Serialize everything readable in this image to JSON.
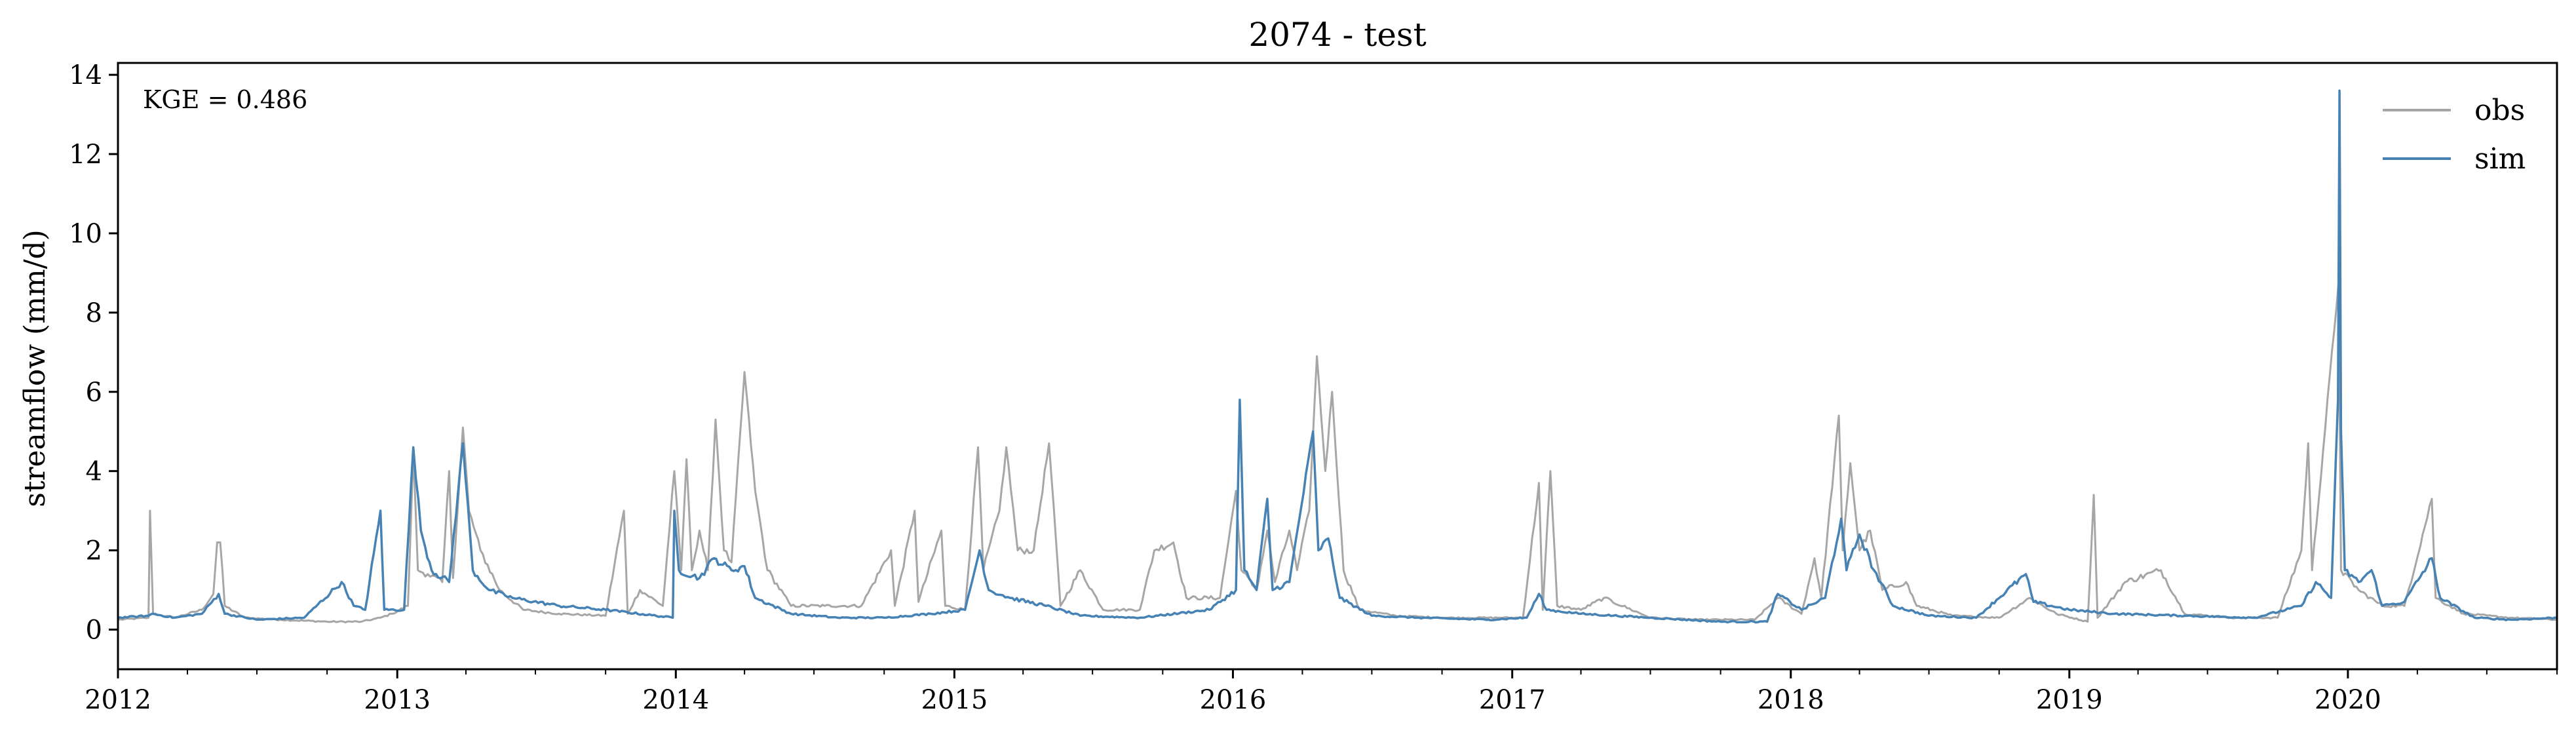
{
  "chart_data": {
    "type": "line",
    "title": "2074 - test",
    "xlabel": "",
    "ylabel": "streamflow (mm/d)",
    "x_range": [
      "2012-01-01",
      "2020-10-01"
    ],
    "ylim": [
      -1,
      14.3
    ],
    "x_ticks": [
      "2012",
      "2013",
      "2014",
      "2015",
      "2016",
      "2017",
      "2018",
      "2019",
      "2020"
    ],
    "y_ticks": [
      0,
      2,
      4,
      6,
      8,
      10,
      12,
      14
    ],
    "grid": false,
    "legend_position": "top-right",
    "annotation": "KGE = 0.486",
    "baseline_value": 0.3,
    "series": [
      {
        "name": "obs",
        "color": "#a6a6a6",
        "points": [
          [
            "2012-01-01",
            0.25
          ],
          [
            "2012-02-10",
            0.3
          ],
          [
            "2012-02-12",
            3.0
          ],
          [
            "2012-02-16",
            0.4
          ],
          [
            "2012-03-15",
            0.3
          ],
          [
            "2012-04-20",
            0.5
          ],
          [
            "2012-05-05",
            0.9
          ],
          [
            "2012-05-10",
            2.2
          ],
          [
            "2012-05-14",
            2.2
          ],
          [
            "2012-05-20",
            0.6
          ],
          [
            "2012-06-15",
            0.3
          ],
          [
            "2012-08-01",
            0.25
          ],
          [
            "2012-10-01",
            0.2
          ],
          [
            "2012-11-15",
            0.2
          ],
          [
            "2012-12-10",
            0.3
          ],
          [
            "2012-12-25",
            0.4
          ],
          [
            "2013-01-15",
            0.6
          ],
          [
            "2013-01-22",
            4.5
          ],
          [
            "2013-01-28",
            1.5
          ],
          [
            "2013-02-10",
            1.4
          ],
          [
            "2013-03-01",
            1.2
          ],
          [
            "2013-03-10",
            4.0
          ],
          [
            "2013-03-15",
            1.3
          ],
          [
            "2013-03-28",
            5.1
          ],
          [
            "2013-04-05",
            3.0
          ],
          [
            "2013-04-20",
            2.0
          ],
          [
            "2013-05-15",
            1.0
          ],
          [
            "2013-06-15",
            0.5
          ],
          [
            "2013-08-01",
            0.4
          ],
          [
            "2013-10-01",
            0.35
          ],
          [
            "2013-10-25",
            3.0
          ],
          [
            "2013-10-30",
            0.4
          ],
          [
            "2013-11-15",
            1.0
          ],
          [
            "2013-12-15",
            0.6
          ],
          [
            "2013-12-30",
            4.0
          ],
          [
            "2014-01-08",
            1.5
          ],
          [
            "2014-01-15",
            4.3
          ],
          [
            "2014-01-22",
            1.5
          ],
          [
            "2014-02-01",
            2.5
          ],
          [
            "2014-02-12",
            1.5
          ],
          [
            "2014-02-22",
            5.3
          ],
          [
            "2014-03-05",
            2.0
          ],
          [
            "2014-03-15",
            1.7
          ],
          [
            "2014-04-01",
            6.5
          ],
          [
            "2014-04-15",
            3.5
          ],
          [
            "2014-05-01",
            1.5
          ],
          [
            "2014-06-01",
            0.6
          ],
          [
            "2014-07-15",
            0.6
          ],
          [
            "2014-09-01",
            0.6
          ],
          [
            "2014-10-10",
            2.0
          ],
          [
            "2014-10-15",
            0.6
          ],
          [
            "2014-11-10",
            3.0
          ],
          [
            "2014-11-15",
            0.7
          ],
          [
            "2014-12-15",
            2.5
          ],
          [
            "2014-12-20",
            0.6
          ],
          [
            "2015-01-15",
            0.5
          ],
          [
            "2015-02-01",
            4.6
          ],
          [
            "2015-02-08",
            1.5
          ],
          [
            "2015-03-01",
            3.0
          ],
          [
            "2015-03-10",
            4.6
          ],
          [
            "2015-03-25",
            2.0
          ],
          [
            "2015-04-15",
            2.0
          ],
          [
            "2015-05-05",
            4.7
          ],
          [
            "2015-05-20",
            0.6
          ],
          [
            "2015-06-15",
            1.5
          ],
          [
            "2015-07-15",
            0.5
          ],
          [
            "2015-09-01",
            0.5
          ],
          [
            "2015-09-20",
            2.0
          ],
          [
            "2015-10-15",
            2.2
          ],
          [
            "2015-11-01",
            0.8
          ],
          [
            "2015-12-15",
            0.8
          ],
          [
            "2016-01-05",
            3.5
          ],
          [
            "2016-01-12",
            1.5
          ],
          [
            "2016-02-01",
            1.0
          ],
          [
            "2016-02-15",
            2.5
          ],
          [
            "2016-02-25",
            1.2
          ],
          [
            "2016-03-15",
            2.5
          ],
          [
            "2016-03-25",
            1.5
          ],
          [
            "2016-04-10",
            3.0
          ],
          [
            "2016-04-20",
            6.9
          ],
          [
            "2016-05-01",
            4.0
          ],
          [
            "2016-05-10",
            6.0
          ],
          [
            "2016-05-25",
            1.5
          ],
          [
            "2016-06-15",
            0.5
          ],
          [
            "2016-08-01",
            0.35
          ],
          [
            "2016-10-01",
            0.3
          ],
          [
            "2016-12-01",
            0.3
          ],
          [
            "2017-01-15",
            0.3
          ],
          [
            "2017-02-05",
            3.7
          ],
          [
            "2017-02-10",
            0.5
          ],
          [
            "2017-02-20",
            4.0
          ],
          [
            "2017-03-01",
            0.6
          ],
          [
            "2017-04-01",
            0.5
          ],
          [
            "2017-05-01",
            0.8
          ],
          [
            "2017-07-01",
            0.3
          ],
          [
            "2017-09-01",
            0.25
          ],
          [
            "2017-11-15",
            0.25
          ],
          [
            "2017-12-15",
            0.8
          ],
          [
            "2018-01-15",
            0.4
          ],
          [
            "2018-02-01",
            1.8
          ],
          [
            "2018-02-10",
            0.8
          ],
          [
            "2018-03-05",
            5.4
          ],
          [
            "2018-03-10",
            2.0
          ],
          [
            "2018-03-20",
            4.2
          ],
          [
            "2018-04-01",
            2.0
          ],
          [
            "2018-04-15",
            2.5
          ],
          [
            "2018-05-01",
            1.0
          ],
          [
            "2018-06-01",
            1.2
          ],
          [
            "2018-06-15",
            0.6
          ],
          [
            "2018-08-01",
            0.35
          ],
          [
            "2018-10-01",
            0.3
          ],
          [
            "2018-11-10",
            0.8
          ],
          [
            "2018-12-15",
            0.4
          ],
          [
            "2019-01-25",
            0.2
          ],
          [
            "2019-02-02",
            3.4
          ],
          [
            "2019-02-07",
            0.3
          ],
          [
            "2019-03-15",
            1.2
          ],
          [
            "2019-05-01",
            1.5
          ],
          [
            "2019-06-01",
            0.4
          ],
          [
            "2019-08-01",
            0.3
          ],
          [
            "2019-10-01",
            0.3
          ],
          [
            "2019-11-01",
            2.0
          ],
          [
            "2019-11-10",
            4.7
          ],
          [
            "2019-11-15",
            1.5
          ],
          [
            "2019-12-20",
            8.8
          ],
          [
            "2019-12-23",
            1.5
          ],
          [
            "2020-01-15",
            1.0
          ],
          [
            "2020-02-15",
            0.6
          ],
          [
            "2020-03-15",
            0.6
          ],
          [
            "2020-04-20",
            3.3
          ],
          [
            "2020-04-25",
            0.8
          ],
          [
            "2020-06-01",
            0.4
          ],
          [
            "2020-08-01",
            0.3
          ],
          [
            "2020-10-01",
            0.25
          ]
        ]
      },
      {
        "name": "sim",
        "color": "#4682b4",
        "points": [
          [
            "2012-01-01",
            0.3
          ],
          [
            "2012-02-10",
            0.35
          ],
          [
            "2012-02-15",
            0.4
          ],
          [
            "2012-03-15",
            0.3
          ],
          [
            "2012-04-20",
            0.4
          ],
          [
            "2012-05-12",
            0.9
          ],
          [
            "2012-05-20",
            0.4
          ],
          [
            "2012-07-01",
            0.25
          ],
          [
            "2012-09-01",
            0.3
          ],
          [
            "2012-10-20",
            1.2
          ],
          [
            "2012-11-05",
            0.6
          ],
          [
            "2012-11-20",
            0.5
          ],
          [
            "2012-12-10",
            3.0
          ],
          [
            "2012-12-15",
            0.5
          ],
          [
            "2013-01-10",
            0.5
          ],
          [
            "2013-01-22",
            4.6
          ],
          [
            "2013-02-01",
            2.5
          ],
          [
            "2013-02-15",
            1.5
          ],
          [
            "2013-03-10",
            1.2
          ],
          [
            "2013-03-28",
            4.7
          ],
          [
            "2013-04-10",
            1.5
          ],
          [
            "2013-05-01",
            1.0
          ],
          [
            "2013-06-01",
            0.8
          ],
          [
            "2013-08-01",
            0.6
          ],
          [
            "2013-10-01",
            0.5
          ],
          [
            "2013-12-28",
            0.3
          ],
          [
            "2013-12-30",
            3.0
          ],
          [
            "2014-01-05",
            1.5
          ],
          [
            "2014-02-01",
            1.3
          ],
          [
            "2014-02-20",
            1.8
          ],
          [
            "2014-03-15",
            1.5
          ],
          [
            "2014-04-01",
            1.6
          ],
          [
            "2014-04-15",
            0.8
          ],
          [
            "2014-06-01",
            0.4
          ],
          [
            "2014-08-01",
            0.3
          ],
          [
            "2014-10-01",
            0.3
          ],
          [
            "2014-12-01",
            0.4
          ],
          [
            "2015-01-15",
            0.5
          ],
          [
            "2015-02-03",
            2.0
          ],
          [
            "2015-02-15",
            1.0
          ],
          [
            "2015-03-15",
            0.8
          ],
          [
            "2015-05-01",
            0.6
          ],
          [
            "2015-06-15",
            0.35
          ],
          [
            "2015-09-01",
            0.3
          ],
          [
            "2015-12-01",
            0.5
          ],
          [
            "2016-01-05",
            1.0
          ],
          [
            "2016-01-10",
            5.8
          ],
          [
            "2016-01-16",
            1.5
          ],
          [
            "2016-02-01",
            1.0
          ],
          [
            "2016-02-15",
            3.3
          ],
          [
            "2016-02-22",
            1.0
          ],
          [
            "2016-03-15",
            1.2
          ],
          [
            "2016-04-15",
            5.0
          ],
          [
            "2016-04-22",
            2.0
          ],
          [
            "2016-05-05",
            2.3
          ],
          [
            "2016-05-20",
            0.8
          ],
          [
            "2016-07-01",
            0.35
          ],
          [
            "2016-09-01",
            0.3
          ],
          [
            "2016-12-01",
            0.25
          ],
          [
            "2017-01-20",
            0.3
          ],
          [
            "2017-02-05",
            0.9
          ],
          [
            "2017-02-15",
            0.5
          ],
          [
            "2017-04-01",
            0.4
          ],
          [
            "2017-07-01",
            0.3
          ],
          [
            "2017-10-01",
            0.2
          ],
          [
            "2017-12-01",
            0.2
          ],
          [
            "2017-12-15",
            0.9
          ],
          [
            "2018-01-15",
            0.5
          ],
          [
            "2018-02-15",
            0.8
          ],
          [
            "2018-03-08",
            2.8
          ],
          [
            "2018-03-15",
            1.5
          ],
          [
            "2018-04-01",
            2.4
          ],
          [
            "2018-04-20",
            1.5
          ],
          [
            "2018-05-15",
            0.6
          ],
          [
            "2018-07-01",
            0.35
          ],
          [
            "2018-09-01",
            0.3
          ],
          [
            "2018-11-05",
            1.4
          ],
          [
            "2018-11-15",
            0.7
          ],
          [
            "2019-01-01",
            0.5
          ],
          [
            "2019-03-01",
            0.4
          ],
          [
            "2019-06-01",
            0.35
          ],
          [
            "2019-09-01",
            0.3
          ],
          [
            "2019-11-01",
            0.6
          ],
          [
            "2019-11-20",
            1.2
          ],
          [
            "2019-12-10",
            0.8
          ],
          [
            "2019-12-19",
            5.8
          ],
          [
            "2019-12-21",
            13.6
          ],
          [
            "2019-12-23",
            5.0
          ],
          [
            "2019-12-28",
            1.5
          ],
          [
            "2020-01-15",
            1.2
          ],
          [
            "2020-02-01",
            1.5
          ],
          [
            "2020-02-15",
            0.6
          ],
          [
            "2020-03-15",
            0.7
          ],
          [
            "2020-04-20",
            1.8
          ],
          [
            "2020-05-01",
            0.8
          ],
          [
            "2020-06-15",
            0.3
          ],
          [
            "2020-08-01",
            0.25
          ],
          [
            "2020-10-01",
            0.3
          ]
        ]
      }
    ]
  }
}
